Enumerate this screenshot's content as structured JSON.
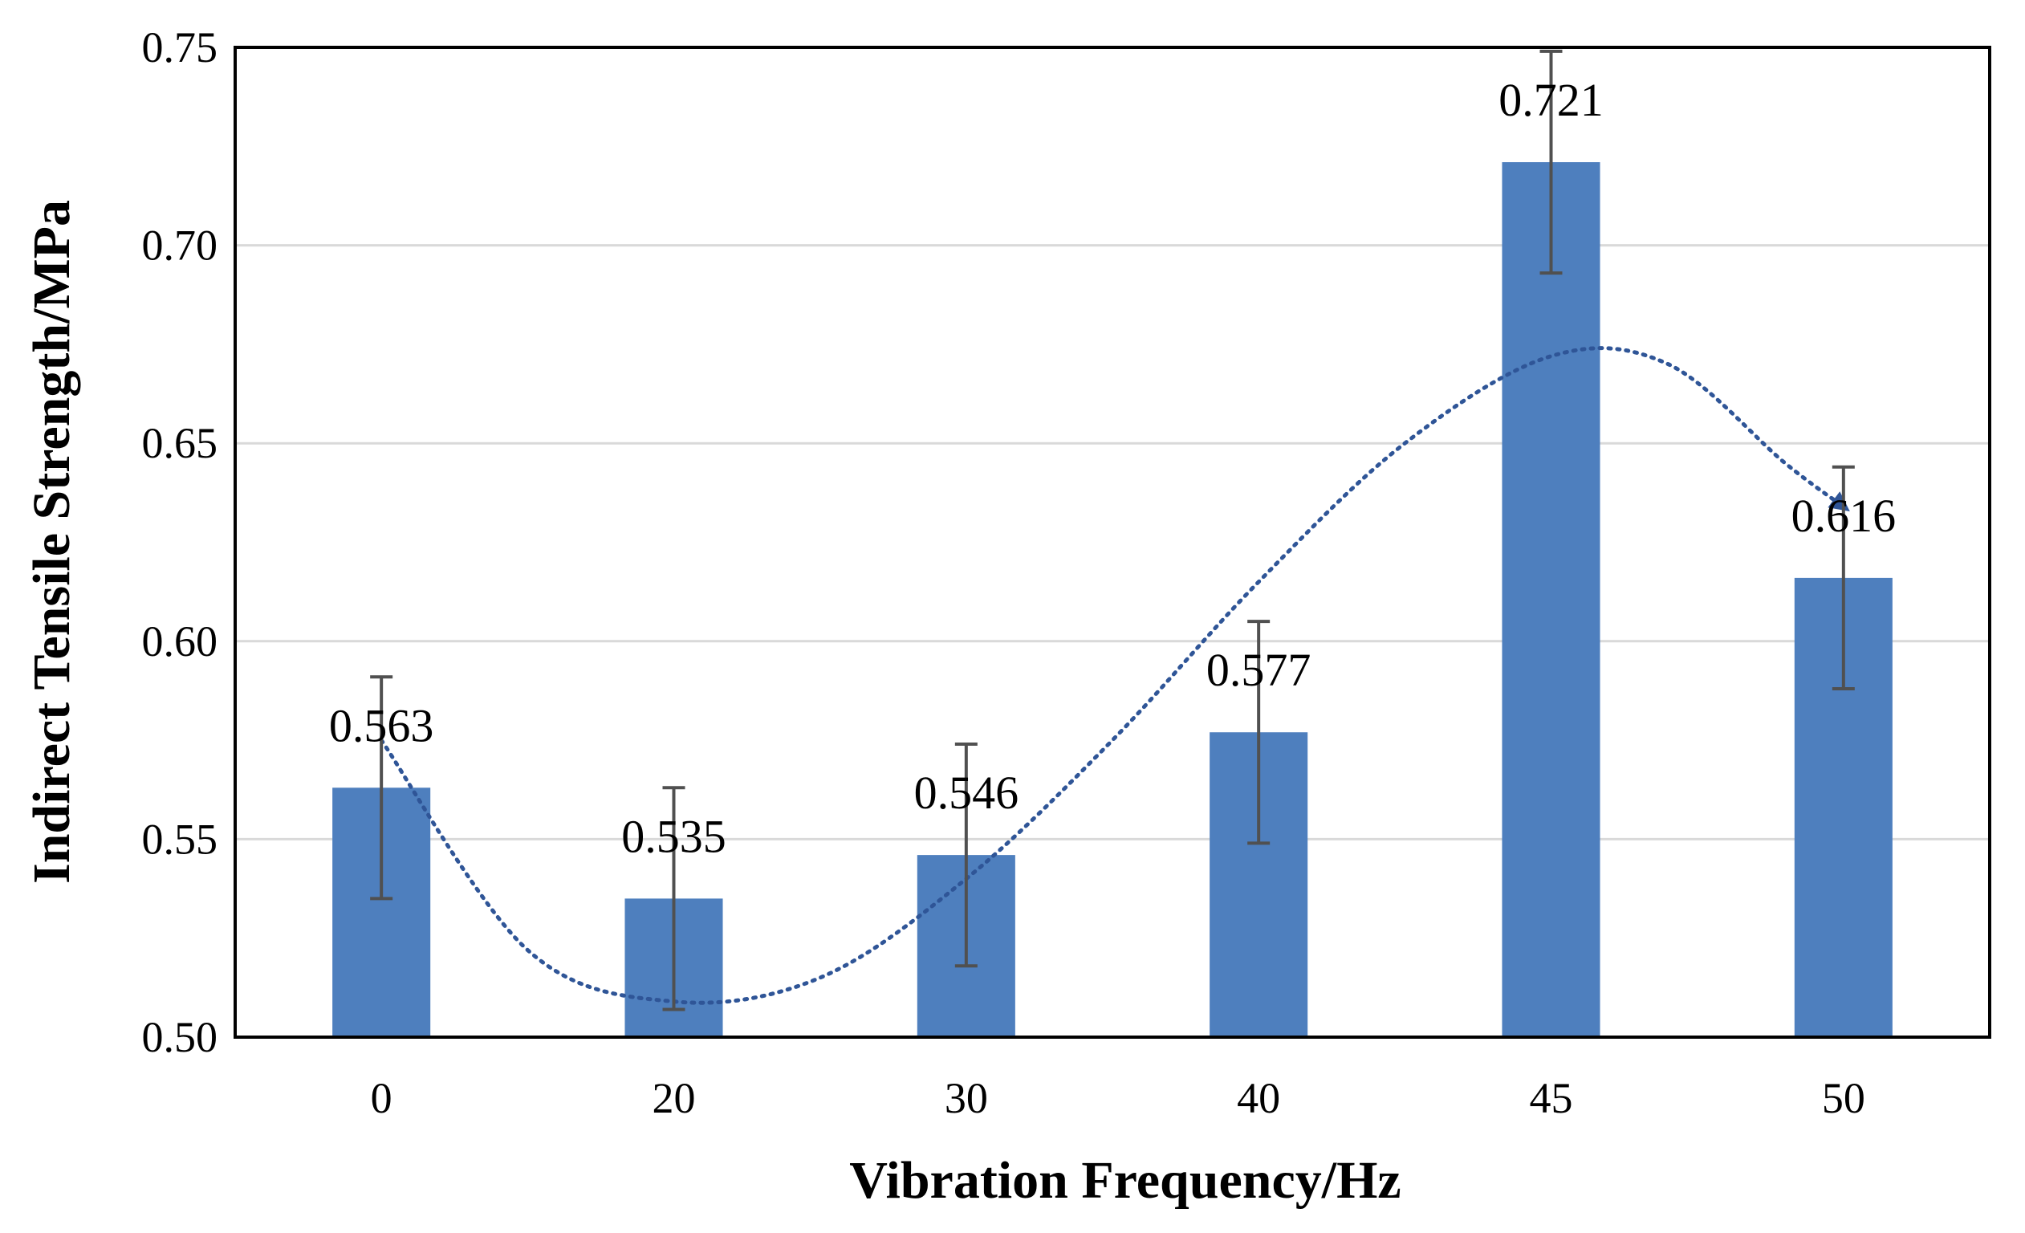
{
  "chart_data": {
    "type": "bar",
    "title": "",
    "xlabel": "Vibration Frequency/Hz",
    "ylabel": "Indirect Tensile Strength/MPa",
    "categories": [
      "0",
      "20",
      "30",
      "40",
      "45",
      "50"
    ],
    "values": [
      0.563,
      0.535,
      0.546,
      0.577,
      0.721,
      0.616
    ],
    "data_labels": [
      "0.563",
      "0.535",
      "0.546",
      "0.577",
      "0.721",
      "0.616"
    ],
    "error_bars": [
      0.028,
      0.028,
      0.028,
      0.028,
      0.028,
      0.028
    ],
    "ylim": [
      0.5,
      0.75
    ],
    "yticks": [
      0.5,
      0.55,
      0.6,
      0.65,
      0.7,
      0.75
    ],
    "ytick_labels": [
      "0.50",
      "0.55",
      "0.60",
      "0.65",
      "0.70",
      "0.75"
    ],
    "trendline": {
      "style": "dotted",
      "shape": "polynomial",
      "direction": "arrow-end",
      "points": [
        {
          "x_index": 0,
          "y": 0.575
        },
        {
          "x_index": 0.5,
          "y": 0.522
        },
        {
          "x_index": 1,
          "y": 0.509
        },
        {
          "x_index": 1.5,
          "y": 0.515
        },
        {
          "x_index": 2,
          "y": 0.54
        },
        {
          "x_index": 2.5,
          "y": 0.575
        },
        {
          "x_index": 3,
          "y": 0.615
        },
        {
          "x_index": 3.5,
          "y": 0.65
        },
        {
          "x_index": 4,
          "y": 0.672
        },
        {
          "x_index": 4.4,
          "y": 0.67
        },
        {
          "x_index": 4.8,
          "y": 0.645
        },
        {
          "x_index": 5,
          "y": 0.634
        }
      ]
    },
    "grid": true,
    "legend": "none",
    "colors": {
      "bar": "#4E7FBE",
      "error_bar": "#505050",
      "trendline": "#2F5597",
      "grid": "#D9D9D9",
      "frame": "#000000"
    }
  }
}
